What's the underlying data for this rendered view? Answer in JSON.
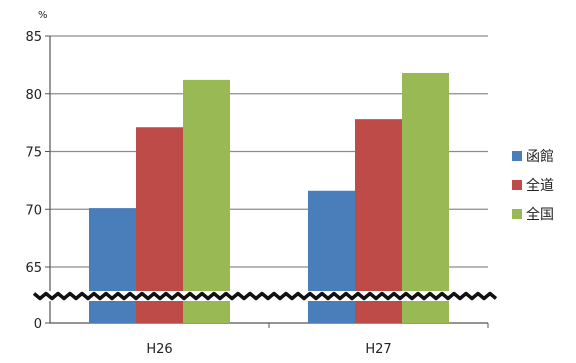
{
  "chart_data": {
    "type": "bar",
    "title": "",
    "unit": "%",
    "categories": [
      "H26",
      "H27"
    ],
    "series": [
      {
        "name": "函館",
        "color": "#4a7ebb",
        "values": [
          70.1,
          71.6
        ]
      },
      {
        "name": "全道",
        "color": "#be4b48",
        "values": [
          77.1,
          77.8
        ]
      },
      {
        "name": "全国",
        "color": "#98b954",
        "values": [
          81.2,
          81.8
        ]
      }
    ],
    "yticks": [
      "85",
      "80",
      "75",
      "70",
      "65",
      "0"
    ],
    "ylim": [
      0,
      85
    ],
    "axis_break": true,
    "grid": true,
    "legend": "right"
  }
}
